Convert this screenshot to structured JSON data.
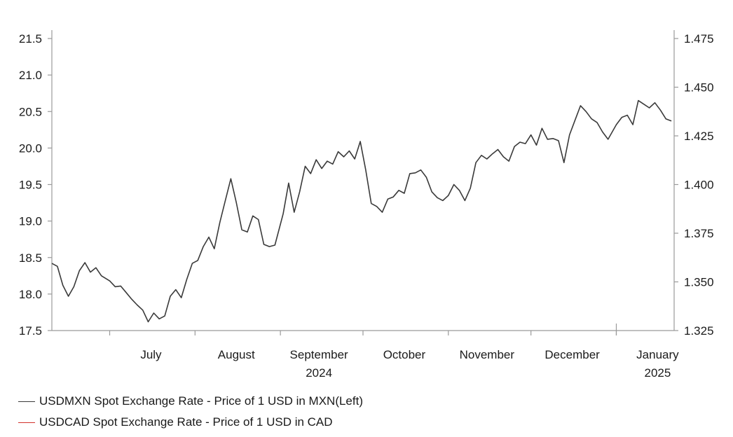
{
  "chart_data": {
    "type": "line",
    "x_axis": {
      "kind": "date",
      "start": "2024-06-10",
      "end": "2025-01-22",
      "month_labels": [
        {
          "label": "July",
          "date": "2024-07-16"
        },
        {
          "label": "August",
          "date": "2024-08-16"
        },
        {
          "label": "September",
          "date": "2024-09-15"
        },
        {
          "label": "October",
          "date": "2024-10-16"
        },
        {
          "label": "November",
          "date": "2024-11-15"
        },
        {
          "label": "December",
          "date": "2024-12-16"
        },
        {
          "label": "January",
          "date": "2025-01-16"
        }
      ],
      "month_boundaries": [
        "2024-07-01",
        "2024-08-01",
        "2024-09-01",
        "2024-10-01",
        "2024-11-01",
        "2024-12-01",
        "2025-01-01"
      ],
      "year_labels": [
        {
          "label": "2024",
          "date": "2024-09-15"
        },
        {
          "label": "2025",
          "date": "2025-01-16"
        }
      ],
      "year_boundary": "2025-01-01"
    },
    "y_left": {
      "ylim": [
        17.5,
        21.5
      ],
      "ticks": [
        "17.5",
        "18.0",
        "18.5",
        "19.0",
        "19.5",
        "20.0",
        "20.5",
        "21.0",
        "21.5"
      ]
    },
    "y_right": {
      "ylim": [
        1.325,
        1.475
      ],
      "ticks": [
        "1.325",
        "1.350",
        "1.375",
        "1.400",
        "1.425",
        "1.450",
        "1.475"
      ]
    },
    "grid": false,
    "legend_placement": "bottom-left",
    "series": [
      {
        "name": "USDMXN Spot Exchange Rate - Price of 1 USD in MXN(Left)",
        "axis": "left",
        "color": "#3a3a3a",
        "points": [
          [
            "2024-06-10",
            18.42
          ],
          [
            "2024-06-12",
            18.38
          ],
          [
            "2024-06-14",
            18.12
          ],
          [
            "2024-06-16",
            17.97
          ],
          [
            "2024-06-18",
            18.1
          ],
          [
            "2024-06-20",
            18.32
          ],
          [
            "2024-06-22",
            18.43
          ],
          [
            "2024-06-24",
            18.3
          ],
          [
            "2024-06-26",
            18.36
          ],
          [
            "2024-06-28",
            18.25
          ],
          [
            "2024-07-01",
            18.18
          ],
          [
            "2024-07-03",
            18.1
          ],
          [
            "2024-07-05",
            18.11
          ],
          [
            "2024-07-07",
            18.02
          ],
          [
            "2024-07-09",
            17.93
          ],
          [
            "2024-07-11",
            17.85
          ],
          [
            "2024-07-13",
            17.78
          ],
          [
            "2024-07-15",
            17.62
          ],
          [
            "2024-07-17",
            17.74
          ],
          [
            "2024-07-19",
            17.66
          ],
          [
            "2024-07-21",
            17.7
          ],
          [
            "2024-07-23",
            17.97
          ],
          [
            "2024-07-25",
            18.06
          ],
          [
            "2024-07-27",
            17.95
          ],
          [
            "2024-07-29",
            18.2
          ],
          [
            "2024-07-31",
            18.42
          ],
          [
            "2024-08-02",
            18.46
          ],
          [
            "2024-08-04",
            18.65
          ],
          [
            "2024-08-06",
            18.78
          ],
          [
            "2024-08-08",
            18.62
          ],
          [
            "2024-08-10",
            18.98
          ],
          [
            "2024-08-12",
            19.28
          ],
          [
            "2024-08-14",
            19.58
          ],
          [
            "2024-08-16",
            19.25
          ],
          [
            "2024-08-18",
            18.88
          ],
          [
            "2024-08-20",
            18.85
          ],
          [
            "2024-08-22",
            19.07
          ],
          [
            "2024-08-24",
            19.02
          ],
          [
            "2024-08-26",
            18.68
          ],
          [
            "2024-08-28",
            18.65
          ],
          [
            "2024-08-30",
            18.67
          ],
          [
            "2024-09-02",
            19.1
          ],
          [
            "2024-09-04",
            19.52
          ],
          [
            "2024-09-06",
            19.12
          ],
          [
            "2024-09-08",
            19.4
          ],
          [
            "2024-09-10",
            19.75
          ],
          [
            "2024-09-12",
            19.65
          ],
          [
            "2024-09-14",
            19.84
          ],
          [
            "2024-09-16",
            19.72
          ],
          [
            "2024-09-18",
            19.82
          ],
          [
            "2024-09-20",
            19.78
          ],
          [
            "2024-09-22",
            19.95
          ],
          [
            "2024-09-24",
            19.88
          ],
          [
            "2024-09-26",
            19.96
          ],
          [
            "2024-09-28",
            19.85
          ],
          [
            "2024-09-30",
            20.09
          ],
          [
            "2024-10-02",
            19.7
          ],
          [
            "2024-10-04",
            19.24
          ],
          [
            "2024-10-06",
            19.2
          ],
          [
            "2024-10-08",
            19.12
          ],
          [
            "2024-10-10",
            19.3
          ],
          [
            "2024-10-12",
            19.33
          ],
          [
            "2024-10-14",
            19.42
          ],
          [
            "2024-10-16",
            19.38
          ],
          [
            "2024-10-18",
            19.65
          ],
          [
            "2024-10-20",
            19.66
          ],
          [
            "2024-10-22",
            19.7
          ],
          [
            "2024-10-24",
            19.6
          ],
          [
            "2024-10-26",
            19.4
          ],
          [
            "2024-10-28",
            19.32
          ],
          [
            "2024-10-30",
            19.28
          ],
          [
            "2024-11-01",
            19.35
          ],
          [
            "2024-11-03",
            19.5
          ],
          [
            "2024-11-05",
            19.42
          ],
          [
            "2024-11-07",
            19.28
          ],
          [
            "2024-11-09",
            19.45
          ],
          [
            "2024-11-11",
            19.8
          ],
          [
            "2024-11-13",
            19.9
          ],
          [
            "2024-11-15",
            19.85
          ],
          [
            "2024-11-17",
            19.92
          ],
          [
            "2024-11-19",
            19.98
          ],
          [
            "2024-11-21",
            19.88
          ],
          [
            "2024-11-23",
            19.82
          ],
          [
            "2024-11-25",
            20.02
          ],
          [
            "2024-11-27",
            20.08
          ],
          [
            "2024-11-29",
            20.06
          ],
          [
            "2024-12-01",
            20.18
          ],
          [
            "2024-12-03",
            20.04
          ],
          [
            "2024-12-05",
            20.27
          ],
          [
            "2024-12-07",
            20.12
          ],
          [
            "2024-12-09",
            20.13
          ],
          [
            "2024-12-11",
            20.1
          ],
          [
            "2024-12-13",
            19.8
          ],
          [
            "2024-12-15",
            20.18
          ],
          [
            "2024-12-17",
            20.38
          ],
          [
            "2024-12-19",
            20.58
          ],
          [
            "2024-12-21",
            20.5
          ],
          [
            "2024-12-23",
            20.4
          ],
          [
            "2024-12-25",
            20.35
          ],
          [
            "2024-12-27",
            20.22
          ],
          [
            "2024-12-29",
            20.12
          ],
          [
            "2025-01-01",
            20.32
          ],
          [
            "2025-01-03",
            20.42
          ],
          [
            "2025-01-05",
            20.45
          ],
          [
            "2025-01-07",
            20.32
          ],
          [
            "2025-01-09",
            20.65
          ],
          [
            "2025-01-11",
            20.6
          ],
          [
            "2025-01-13",
            20.55
          ],
          [
            "2025-01-15",
            20.62
          ],
          [
            "2025-01-17",
            20.52
          ],
          [
            "2025-01-19",
            20.4
          ],
          [
            "2025-01-21",
            20.37
          ]
        ]
      },
      {
        "name": "USDCAD Spot Exchange Rate - Price of 1 USD in CAD",
        "axis": "right",
        "color": "#d2322b",
        "points": []
      }
    ]
  }
}
